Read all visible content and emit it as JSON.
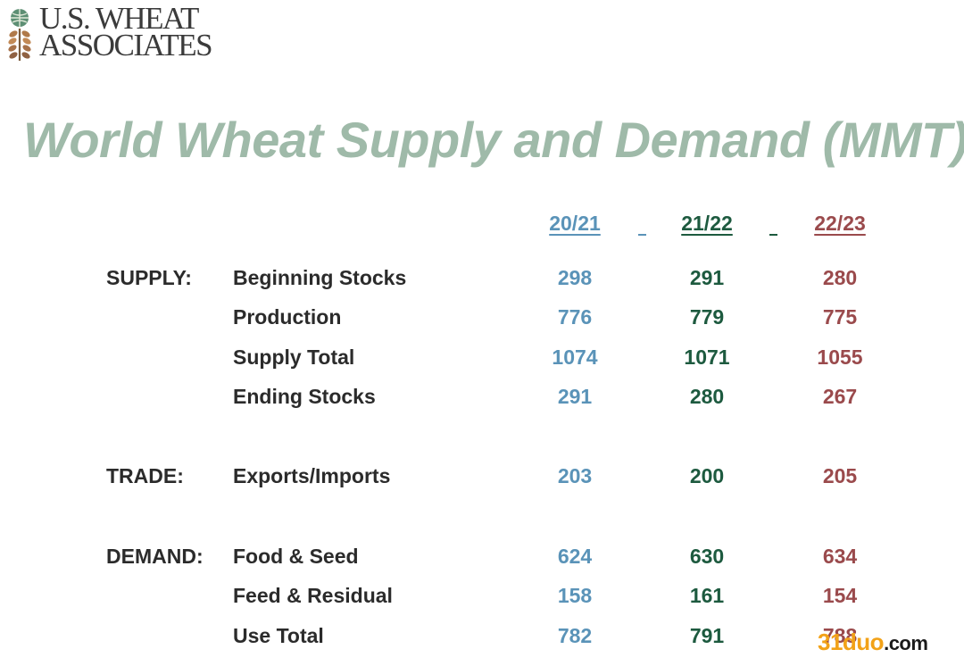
{
  "logo": {
    "line1": "U.S. WHEAT",
    "line2": "ASSOCIATES"
  },
  "title": "World Wheat Supply and Demand (MMT)",
  "colors": {
    "col1": "#5a93b8",
    "col2": "#1d5a3f",
    "col3": "#9a4a4c",
    "title": "#9fbaa9"
  },
  "columns": [
    "20/21",
    "21/22",
    "22/23"
  ],
  "sections": [
    {
      "category": "SUPPLY:",
      "rows": [
        {
          "label": "Beginning Stocks",
          "values": [
            "298",
            "291",
            "280"
          ]
        },
        {
          "label": "Production",
          "values": [
            "776",
            "779",
            "775"
          ]
        },
        {
          "label": "Supply Total",
          "values": [
            "1074",
            "1071",
            "1055"
          ]
        },
        {
          "label": "Ending Stocks",
          "values": [
            "291",
            "280",
            "267"
          ]
        }
      ]
    },
    {
      "category": "TRADE:",
      "rows": [
        {
          "label": "Exports/Imports",
          "values": [
            "203",
            "200",
            "205"
          ]
        }
      ]
    },
    {
      "category": "DEMAND:",
      "rows": [
        {
          "label": "Food & Seed",
          "values": [
            "624",
            "630",
            "634"
          ]
        },
        {
          "label": "Feed & Residual",
          "values": [
            "158",
            "161",
            "154"
          ]
        },
        {
          "label": "Use Total",
          "values": [
            "782",
            "791",
            "788"
          ]
        }
      ]
    }
  ],
  "watermark": {
    "brand": "31duo",
    "suffix": ".com"
  }
}
